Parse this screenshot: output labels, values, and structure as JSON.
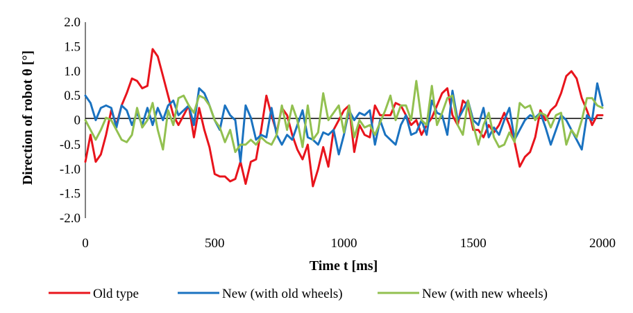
{
  "chart_data": {
    "type": "line",
    "title": "",
    "xlabel": "Time t [ms]",
    "ylabel": "Direction of robot θ [°]",
    "xlim": [
      0,
      2000
    ],
    "ylim": [
      -2.0,
      2.0
    ],
    "x_ticks": [
      "0",
      "500",
      "1000",
      "1500",
      "2000"
    ],
    "y_ticks": [
      "2.0",
      "1.5",
      "1.0",
      "0.5",
      "0",
      "-0.5",
      "-1.0",
      "-1.5",
      "-2.0"
    ],
    "grid": false,
    "legend_position": "bottom",
    "x": [
      0,
      20,
      40,
      60,
      80,
      100,
      120,
      140,
      160,
      180,
      200,
      220,
      240,
      260,
      280,
      300,
      320,
      340,
      360,
      380,
      400,
      420,
      440,
      460,
      480,
      500,
      520,
      540,
      560,
      580,
      600,
      620,
      640,
      660,
      680,
      700,
      720,
      740,
      760,
      780,
      800,
      820,
      840,
      860,
      880,
      900,
      920,
      940,
      960,
      980,
      1000,
      1020,
      1040,
      1060,
      1080,
      1100,
      1120,
      1140,
      1160,
      1180,
      1200,
      1220,
      1240,
      1260,
      1280,
      1300,
      1320,
      1340,
      1360,
      1380,
      1400,
      1420,
      1440,
      1460,
      1480,
      1500,
      1520,
      1540,
      1560,
      1580,
      1600,
      1620,
      1640,
      1660,
      1680,
      1700,
      1720,
      1740,
      1760,
      1780,
      1800,
      1820,
      1840,
      1860,
      1880,
      1900,
      1920,
      1940,
      1960,
      1980,
      2000
    ],
    "series": [
      {
        "name": "Old type",
        "color": "#e8141c",
        "values": [
          -0.85,
          -0.3,
          -0.85,
          -0.7,
          -0.3,
          0.2,
          -0.1,
          0.3,
          0.55,
          0.85,
          0.8,
          0.65,
          0.7,
          1.45,
          1.3,
          0.9,
          0.5,
          0.1,
          -0.1,
          0.1,
          0.3,
          -0.35,
          0.25,
          -0.2,
          -0.55,
          -1.1,
          -1.15,
          -1.15,
          -1.25,
          -1.2,
          -0.85,
          -1.3,
          -0.85,
          -0.8,
          -0.2,
          0.5,
          0.1,
          -0.25,
          0.25,
          0.1,
          -0.3,
          -0.6,
          -0.8,
          -0.5,
          -1.35,
          -1.0,
          -0.55,
          -0.95,
          -0.2,
          0.0,
          0.2,
          0.3,
          -0.65,
          -0.1,
          -0.3,
          -0.35,
          0.3,
          0.1,
          0.1,
          0.1,
          0.35,
          0.3,
          0.1,
          -0.1,
          0.0,
          -0.3,
          -0.1,
          0.05,
          0.3,
          0.55,
          0.65,
          0.1,
          -0.1,
          0.4,
          0.3,
          -0.2,
          -0.2,
          -0.35,
          -0.1,
          -0.25,
          -0.1,
          0.15,
          -0.1,
          -0.45,
          -0.95,
          -0.75,
          -0.65,
          -0.35,
          0.2,
          0.0,
          0.2,
          0.3,
          0.55,
          0.9,
          1.0,
          0.85,
          0.45,
          0.2,
          -0.1,
          0.1,
          0.1
        ]
      },
      {
        "name": "New (with old wheels)",
        "color": "#1a72c0",
        "values": [
          0.5,
          0.35,
          0.0,
          0.25,
          0.3,
          0.25,
          -0.15,
          0.3,
          0.2,
          -0.1,
          0.15,
          -0.1,
          0.25,
          -0.1,
          0.25,
          0.0,
          0.3,
          0.4,
          0.1,
          0.2,
          0.3,
          -0.1,
          0.65,
          0.55,
          0.3,
          0.0,
          -0.2,
          0.3,
          0.1,
          0.0,
          -0.85,
          0.3,
          0.05,
          -0.4,
          -0.3,
          -0.35,
          0.25,
          -0.3,
          -0.5,
          -0.3,
          -0.4,
          -0.1,
          0.2,
          -0.35,
          -0.4,
          -0.5,
          -0.25,
          -0.3,
          -0.2,
          -0.7,
          -0.3,
          0.2,
          0.0,
          0.15,
          0.1,
          0.2,
          -0.5,
          0.0,
          -0.3,
          -0.4,
          -0.5,
          -0.1,
          0.1,
          -0.3,
          -0.25,
          0.0,
          -0.3,
          0.4,
          0.15,
          0.1,
          -0.3,
          0.6,
          0.0,
          0.2,
          0.4,
          0.0,
          -0.1,
          0.25,
          -0.35,
          -0.15,
          -0.3,
          0.0,
          0.25,
          -0.4,
          -0.2,
          0.0,
          0.1,
          0.05,
          0.15,
          -0.15,
          -0.5,
          -0.2,
          0.1,
          0.0,
          -0.2,
          -0.4,
          -0.6,
          0.1,
          0.0,
          0.75,
          0.3
        ]
      },
      {
        "name": "New (with new wheels)",
        "color": "#92c050",
        "values": [
          0.0,
          -0.2,
          -0.4,
          -0.2,
          0.05,
          0.0,
          -0.2,
          -0.4,
          -0.45,
          -0.3,
          0.25,
          -0.15,
          0.0,
          0.35,
          -0.2,
          -0.6,
          0.2,
          -0.1,
          0.45,
          0.5,
          0.3,
          0.15,
          0.5,
          0.45,
          0.3,
          0.0,
          -0.15,
          -0.45,
          -0.2,
          -0.65,
          -0.5,
          -0.5,
          -0.4,
          -0.5,
          -0.35,
          -0.45,
          -0.5,
          -0.3,
          0.3,
          -0.2,
          0.3,
          0.0,
          -0.55,
          0.3,
          -0.4,
          -0.25,
          0.55,
          0.0,
          0.15,
          0.3,
          -0.25,
          0.3,
          -0.35,
          0.0,
          -0.15,
          -0.1,
          -0.3,
          -0.05,
          0.2,
          0.5,
          0.0,
          0.3,
          0.3,
          0.0,
          0.8,
          0.0,
          -0.1,
          0.7,
          -0.1,
          0.15,
          0.45,
          0.5,
          -0.1,
          -0.3,
          0.4,
          -0.1,
          -0.5,
          -0.1,
          0.15,
          -0.35,
          -0.55,
          -0.5,
          -0.25,
          -0.45,
          0.35,
          0.25,
          0.3,
          0.0,
          0.15,
          0.1,
          -0.15,
          0.1,
          0.15,
          -0.5,
          -0.2,
          -0.35,
          0.0,
          0.45,
          0.45,
          0.3,
          0.25
        ]
      }
    ]
  }
}
